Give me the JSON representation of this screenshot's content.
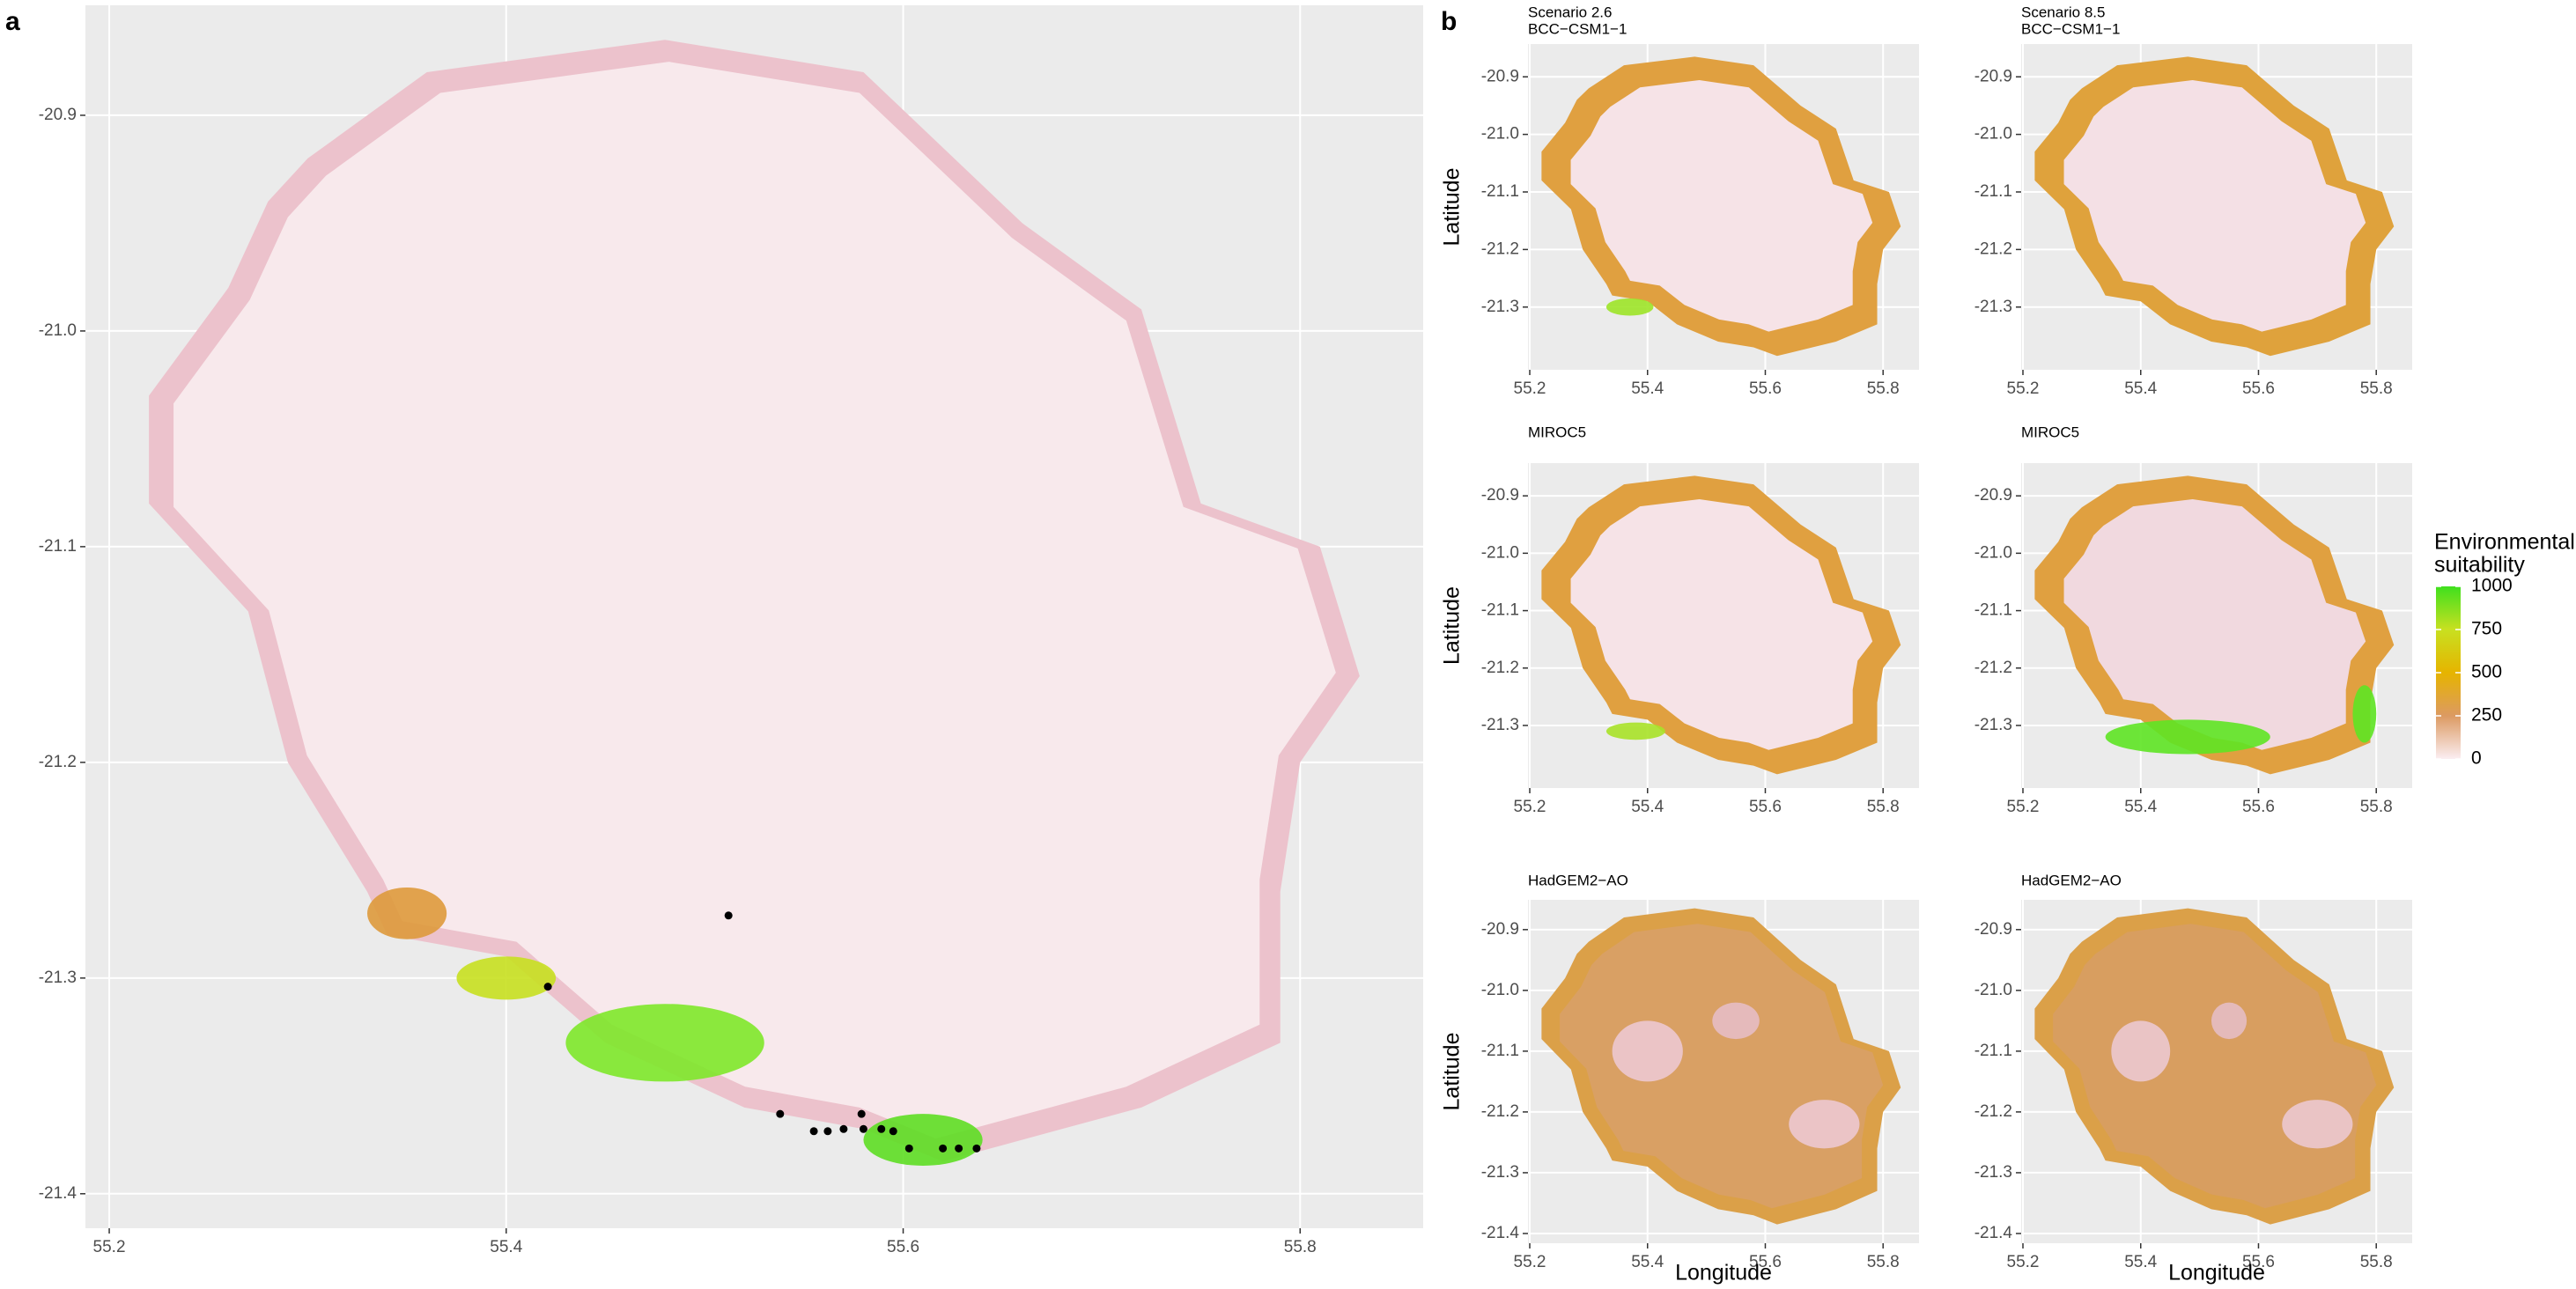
{
  "panel_labels": [
    "a",
    "b"
  ],
  "chart_data": [
    {
      "type": "map",
      "grid": true,
      "xlim": [
        55.188,
        55.862
      ],
      "ylim": [
        -21.416,
        -20.849
      ],
      "xticks": [
        55.2,
        55.4,
        55.6,
        55.8
      ],
      "yticks": [
        -20.9,
        {
          "value": -21,
          "label": "-21.0"
        },
        -21.1,
        -21.2,
        -21.3,
        -21.4
      ],
      "points": {
        "color": "#000000",
        "x": [
          55.421,
          55.512,
          55.538,
          55.555,
          55.562,
          55.57,
          55.579,
          55.58,
          55.589,
          55.595,
          55.603,
          55.62,
          55.628,
          55.637
        ],
        "y": [
          -21.304,
          -21.271,
          -21.363,
          -21.371,
          -21.371,
          -21.37,
          -21.363,
          -21.37,
          -21.37,
          -21.371,
          -21.379,
          -21.379,
          -21.379,
          -21.379
        ]
      }
    },
    {
      "type": "map",
      "grid": true,
      "title": "Scenario 2.6",
      "subtitle": "BCC−CSM1−1",
      "ylabel": "Latitude",
      "xlim": [
        55.197,
        55.861
      ],
      "ylim": [
        -21.409,
        -20.843
      ],
      "xticks": [
        55.2,
        55.4,
        55.6,
        55.8
      ],
      "yticks": [
        -20.9,
        {
          "value": -21,
          "label": "-21.0"
        },
        -21.1,
        -21.2,
        -21.3
      ]
    },
    {
      "type": "map",
      "grid": true,
      "title": "Scenario 8.5",
      "subtitle": "BCC−CSM1−1",
      "xlim": [
        55.197,
        55.861
      ],
      "ylim": [
        -21.409,
        -20.843
      ],
      "xticks": [
        55.2,
        55.4,
        55.6,
        55.8
      ],
      "yticks": [
        -20.9,
        {
          "value": -21,
          "label": "-21.0"
        },
        -21.1,
        -21.2,
        -21.3
      ]
    },
    {
      "type": "map",
      "grid": true,
      "title": "MIROC5",
      "ylabel": "Latitude",
      "xlim": [
        55.197,
        55.861
      ],
      "ylim": [
        -21.409,
        -20.843
      ],
      "xticks": [
        55.2,
        55.4,
        55.6,
        55.8
      ],
      "yticks": [
        -20.9,
        {
          "value": -21,
          "label": "-21.0"
        },
        -21.1,
        -21.2,
        -21.3
      ]
    },
    {
      "type": "map",
      "grid": true,
      "title": "MIROC5",
      "xlim": [
        55.197,
        55.861
      ],
      "ylim": [
        -21.409,
        -20.843
      ],
      "xticks": [
        55.2,
        55.4,
        55.6,
        55.8
      ],
      "yticks": [
        -20.9,
        {
          "value": -21,
          "label": "-21.0"
        },
        -21.1,
        -21.2,
        -21.3
      ]
    },
    {
      "type": "map",
      "grid": true,
      "title": "HadGEM2−AO",
      "ylabel": "Latitude",
      "xlabel": "Longitude",
      "xlim": [
        55.197,
        55.861
      ],
      "ylim": [
        -21.416,
        -20.851
      ],
      "xticks": [
        55.2,
        55.4,
        55.6,
        55.8
      ],
      "yticks": [
        -20.9,
        {
          "value": -21,
          "label": "-21.0"
        },
        -21.1,
        -21.2,
        -21.3,
        -21.4
      ]
    },
    {
      "type": "map",
      "grid": true,
      "title": "HadGEM2−AO",
      "xlabel": "Longitude",
      "xlim": [
        55.197,
        55.861
      ],
      "ylim": [
        -21.416,
        -20.851
      ],
      "xticks": [
        55.2,
        55.4,
        55.6,
        55.8
      ],
      "yticks": [
        -20.9,
        {
          "value": -21,
          "label": "-21.0"
        },
        -21.1,
        -21.2,
        -21.3,
        -21.4
      ]
    }
  ],
  "legend": {
    "title": [
      "Environmental",
      "suitability"
    ],
    "lim": [
      0,
      1000
    ],
    "ticks": [
      0,
      250,
      500,
      750,
      1000
    ],
    "colors": [
      "#fbeef2",
      "#dc9a62",
      "#e6b400",
      "#c8e020",
      "#3fe01e"
    ]
  }
}
